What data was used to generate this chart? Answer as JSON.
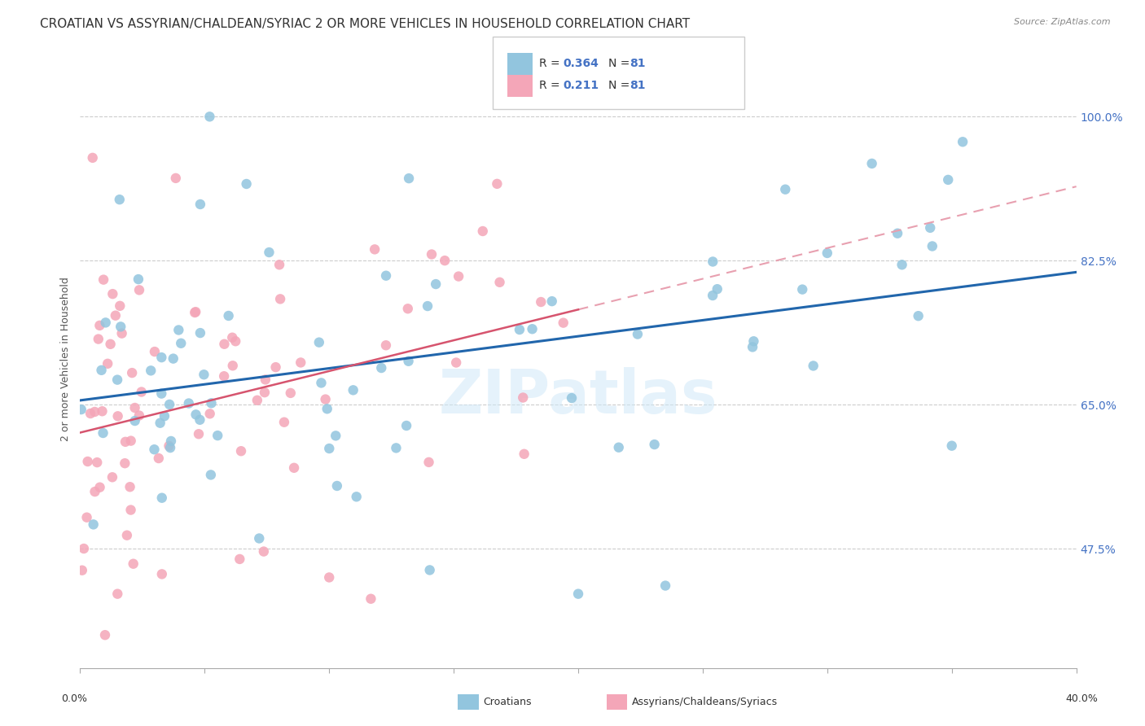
{
  "title": "CROATIAN VS ASSYRIAN/CHALDEAN/SYRIAC 2 OR MORE VEHICLES IN HOUSEHOLD CORRELATION CHART",
  "source": "Source: ZipAtlas.com",
  "ylabel": "2 or more Vehicles in Household",
  "yticks": [
    47.5,
    65.0,
    82.5,
    100.0
  ],
  "ytick_labels": [
    "47.5%",
    "65.0%",
    "82.5%",
    "100.0%"
  ],
  "xmin": 0.0,
  "xmax": 40.0,
  "ymin": 33.0,
  "ymax": 108.0,
  "R_blue": 0.364,
  "N_blue": 81,
  "R_pink": 0.211,
  "N_pink": 81,
  "blue_color": "#92c5de",
  "pink_color": "#f4a6b8",
  "blue_line_color": "#2166ac",
  "pink_line_color": "#d6546e",
  "pink_dash_color": "#e8a0b0",
  "legend_label_blue": "Croatians",
  "legend_label_pink": "Assyrians/Chaldeans/Syriacs",
  "watermark": "ZIPatlas",
  "title_fontsize": 11,
  "axis_label_fontsize": 9,
  "tick_fontsize": 9
}
